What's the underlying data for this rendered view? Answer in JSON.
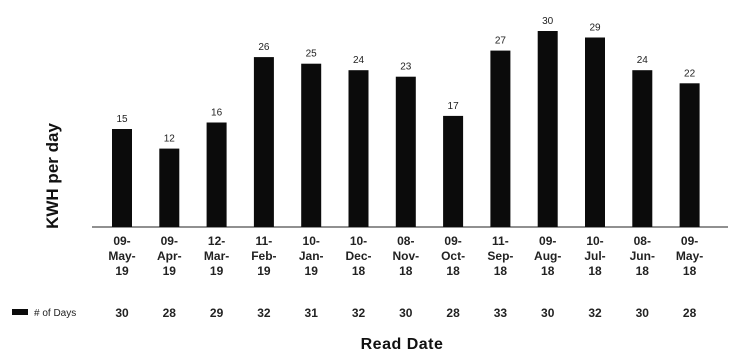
{
  "chart_data": {
    "type": "bar",
    "title": "",
    "ylabel": "KWH per day",
    "xlabel": "Read Date",
    "categories": [
      [
        "09-",
        "May-",
        "19"
      ],
      [
        "09-",
        "Apr-",
        "19"
      ],
      [
        "12-",
        "Mar-",
        "19"
      ],
      [
        "11-",
        "Feb-",
        "19"
      ],
      [
        "10-",
        "Jan-",
        "19"
      ],
      [
        "10-",
        "Dec-",
        "18"
      ],
      [
        "08-",
        "Nov-",
        "18"
      ],
      [
        "09-",
        "Oct-",
        "18"
      ],
      [
        "11-",
        "Sep-",
        "18"
      ],
      [
        "09-",
        "Aug-",
        "18"
      ],
      [
        "10-",
        "Jul-",
        "18"
      ],
      [
        "08-",
        "Jun-",
        "18"
      ],
      [
        "09-",
        "May-",
        "18"
      ]
    ],
    "values": [
      15,
      12,
      16,
      26,
      25,
      24,
      23,
      17,
      27,
      30,
      29,
      24,
      22
    ],
    "ylim": [
      0,
      30
    ],
    "grid": false,
    "bar_color": "#0b0b0b",
    "days_row": {
      "legend_label": "# of Days",
      "values": [
        30,
        28,
        29,
        32,
        31,
        32,
        30,
        28,
        33,
        30,
        32,
        30,
        28
      ]
    }
  }
}
